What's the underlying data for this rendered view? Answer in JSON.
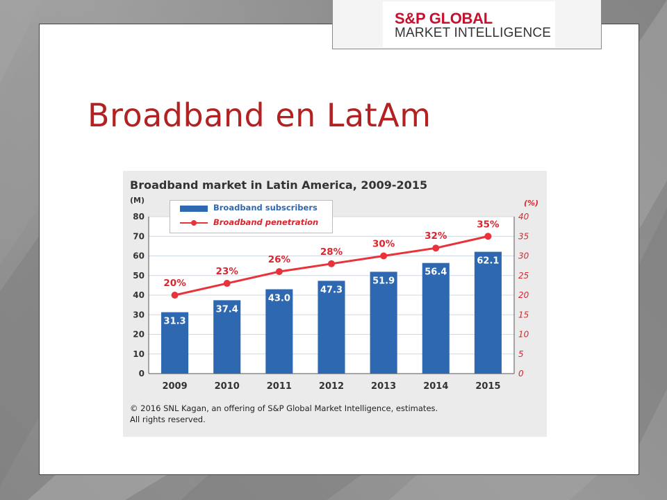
{
  "logo": {
    "line1": "S&P GLOBAL",
    "line2": "MARKET INTELLIGENCE"
  },
  "slide": {
    "title": "Broadband en LatAm"
  },
  "colors": {
    "title": "#b22222",
    "bars": "#2e68b0",
    "line": "#e8333b",
    "logo_red": "#c8102e"
  },
  "chart_data": {
    "type": "bar",
    "title": "Broadband market in Latin America, 2009-2015",
    "categories": [
      "2009",
      "2010",
      "2011",
      "2012",
      "2013",
      "2014",
      "2015"
    ],
    "ylabel": "(M)",
    "ylim": [
      0,
      80
    ],
    "yticks": [
      "0",
      "10",
      "20",
      "30",
      "40",
      "50",
      "60",
      "70",
      "80"
    ],
    "y2label": "(%)",
    "y2lim": [
      0,
      40
    ],
    "y2ticks": [
      "0",
      "5",
      "10",
      "15",
      "20",
      "25",
      "30",
      "35",
      "40"
    ],
    "series": [
      {
        "name": "Broadband subscribers",
        "type": "bar",
        "axis": "left",
        "values": [
          31.3,
          37.4,
          43.0,
          47.3,
          51.9,
          56.4,
          62.1
        ],
        "labels": [
          "31.3",
          "37.4",
          "43.0",
          "47.3",
          "51.9",
          "56.4",
          "62.1"
        ]
      },
      {
        "name": "Broadband penetration",
        "type": "line",
        "axis": "right",
        "values": [
          20,
          23,
          26,
          28,
          30,
          32,
          35
        ],
        "labels": [
          "20%",
          "23%",
          "26%",
          "28%",
          "30%",
          "32%",
          "35%"
        ]
      }
    ],
    "legend": "top-left",
    "grid": true,
    "source_lines": [
      "© 2016 SNL Kagan, an offering of S&P Global Market Intelligence, estimates.",
      "All rights reserved."
    ]
  }
}
